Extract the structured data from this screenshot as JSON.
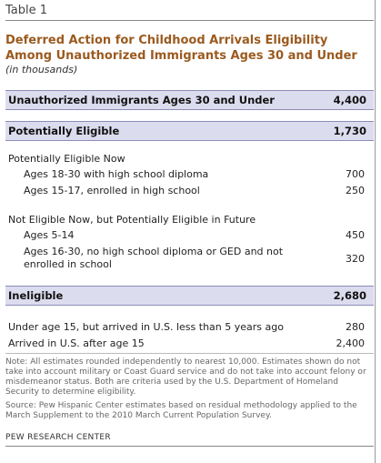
{
  "table_label": "Table 1",
  "title_line1": "Deferred Action for Childhood  Arrivals Eligibility",
  "title_line2": "Among Unauthorized Immigrants Ages 30 and Under",
  "subtitle": "(in thousands)",
  "band_total": {
    "label": "Unauthorized Immigrants Ages 30 and Under",
    "value": "4,400"
  },
  "band_eligible": {
    "label": "Potentially Eligible",
    "value": "1,730"
  },
  "eligible_now": {
    "heading": "Potentially Eligible Now",
    "rows": [
      {
        "label": "Ages 18-30 with high school diploma",
        "value": "700"
      },
      {
        "label": "Ages 15-17, enrolled in high school",
        "value": "250"
      }
    ]
  },
  "eligible_future": {
    "heading": "Not Eligible Now, but Potentially Eligible in Future",
    "rows": [
      {
        "label": "Ages 5-14",
        "value": "450"
      },
      {
        "label": "Ages 16-30, no high school diploma or GED and not enrolled in school",
        "value": "320"
      }
    ]
  },
  "band_ineligible": {
    "label": "Ineligible",
    "value": "2,680"
  },
  "ineligible_rows": [
    {
      "label": "Under age 15, but arrived in U.S. less than 5 years ago",
      "value": "280"
    },
    {
      "label": "Arrived in U.S. after age 15",
      "value": "2,400"
    }
  ],
  "note": "Note: All estimates rounded independently to nearest 10,000. Estimates shown do not take into account military or Coast Guard service and do not take into account felony or misdemeanor status. Both are criteria used by the U.S. Department of Homeland Security to determine eligibility.",
  "source": "Source: Pew Hispanic Center estimates based on residual methodology applied to the March Supplement to the 2010 March Current Population Survey.",
  "footer": "PEW RESEARCH CENTER"
}
